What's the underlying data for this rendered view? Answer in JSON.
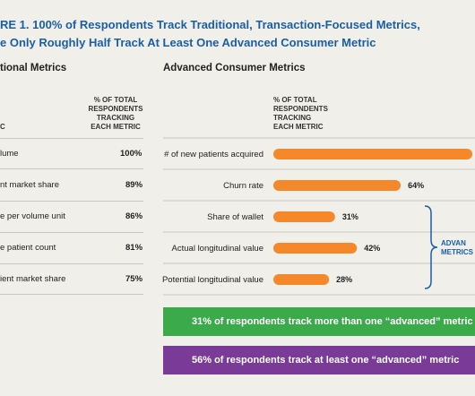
{
  "title": {
    "line1": "RE 1.  100% of Respondents Track Traditional, Transaction-Focused Metrics,",
    "line2": "e Only Roughly Half Track At Least One Advanced Consumer Metric"
  },
  "left": {
    "section_title": "tional Metrics",
    "col_head_left": "C",
    "col_head_right": "% OF TOTAL\nRESPONDENTS\nTRACKING\nEACH METRIC",
    "rows": [
      {
        "label": "lume",
        "value": "100%"
      },
      {
        "label": "nt market share",
        "value": "89%"
      },
      {
        "label": "e per volume unit",
        "value": "86%"
      },
      {
        "label": "e patient count",
        "value": "81%"
      },
      {
        "label": "ient market share",
        "value": "75%"
      }
    ]
  },
  "right": {
    "section_title": "Advanced Consumer Metrics",
    "col_head": "% OF TOTAL\nRESPONDENTS\nTRACKING\nEACH METRIC",
    "bracket_label_line1": "ADVAN",
    "bracket_label_line2": "METRICS"
  },
  "chart_data": {
    "type": "bar",
    "orientation": "horizontal",
    "categories": [
      "# of new patients acquired",
      "Churn rate",
      "Share of wallet",
      "Actual longitudinal value",
      "Potential longitudinal value"
    ],
    "values": [
      100,
      64,
      31,
      42,
      28
    ],
    "value_labels": [
      "",
      "64%",
      "31%",
      "42%",
      "28%"
    ],
    "xlim": [
      0,
      100
    ],
    "bar_color": "#f5882a"
  },
  "banners": [
    {
      "text": "31% of respondents track more than one “advanced” metric",
      "color": "#3aaa4a"
    },
    {
      "text": "56% of respondents track at least one “advanced” metric",
      "color": "#7a3a98"
    }
  ],
  "colors": {
    "title": "#1a5fa6",
    "bracket": "#1a5fa6"
  }
}
